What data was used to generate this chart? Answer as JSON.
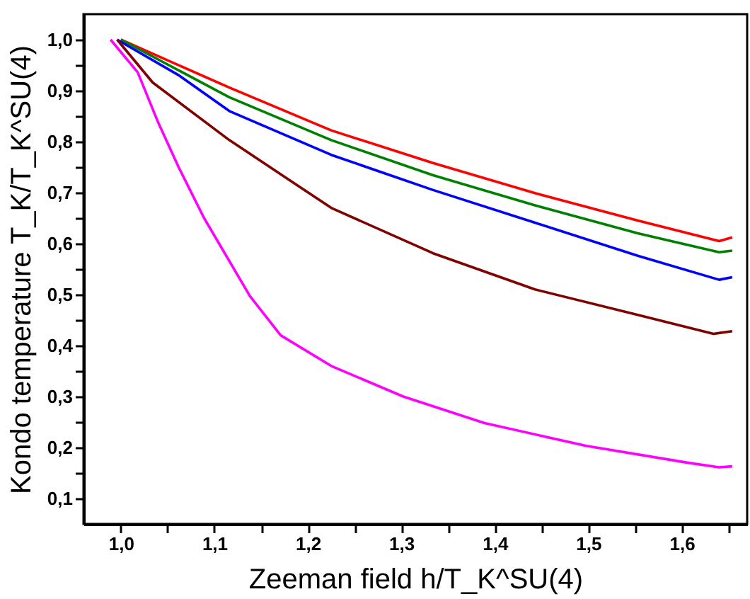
{
  "chart_data": {
    "type": "line",
    "xlabel": "Zeeman field h/T_K^SU(4)",
    "ylabel": "Kondo temperature T_K/T_K^SU(4)",
    "xlim": [
      0.96,
      1.67
    ],
    "ylim": [
      0.05,
      1.05
    ],
    "xticks": [
      {
        "value": 1.0,
        "label": "1,0"
      },
      {
        "value": 1.05,
        "label": null
      },
      {
        "value": 1.1,
        "label": "1,1"
      },
      {
        "value": 1.15,
        "label": null
      },
      {
        "value": 1.2,
        "label": "1,2"
      },
      {
        "value": 1.25,
        "label": null
      },
      {
        "value": 1.3,
        "label": "1,3"
      },
      {
        "value": 1.35,
        "label": null
      },
      {
        "value": 1.4,
        "label": "1,4"
      },
      {
        "value": 1.45,
        "label": null
      },
      {
        "value": 1.5,
        "label": "1,5"
      },
      {
        "value": 1.55,
        "label": null
      },
      {
        "value": 1.6,
        "label": "1,6"
      },
      {
        "value": 1.65,
        "label": null
      }
    ],
    "yticks": [
      {
        "value": 0.1,
        "label": "0,1"
      },
      {
        "value": 0.15,
        "label": null
      },
      {
        "value": 0.2,
        "label": "0,2"
      },
      {
        "value": 0.25,
        "label": null
      },
      {
        "value": 0.3,
        "label": "0,3"
      },
      {
        "value": 0.35,
        "label": null
      },
      {
        "value": 0.4,
        "label": "0,4"
      },
      {
        "value": 0.45,
        "label": null
      },
      {
        "value": 0.5,
        "label": "0,5"
      },
      {
        "value": 0.55,
        "label": null
      },
      {
        "value": 0.6,
        "label": "0,6"
      },
      {
        "value": 0.65,
        "label": null
      },
      {
        "value": 0.7,
        "label": "0,7"
      },
      {
        "value": 0.75,
        "label": null
      },
      {
        "value": 0.8,
        "label": "0,8"
      },
      {
        "value": 0.85,
        "label": null
      },
      {
        "value": 0.9,
        "label": "0,9"
      },
      {
        "value": 0.95,
        "label": null
      },
      {
        "value": 1.0,
        "label": "1,0"
      }
    ],
    "grid": false,
    "legend": false,
    "marker": "none",
    "line_style": "solid",
    "series": [
      {
        "color": "#ff0000",
        "x": [
          1.0,
          1.116,
          1.225,
          1.334,
          1.443,
          1.553,
          1.64,
          1.654
        ],
        "values": [
          1.0,
          0.906,
          0.822,
          0.758,
          0.699,
          0.645,
          0.605,
          0.612
        ]
      },
      {
        "color": "#008000",
        "x": [
          1.0,
          1.116,
          1.225,
          1.334,
          1.443,
          1.553,
          1.64,
          1.654
        ],
        "values": [
          1.0,
          0.887,
          0.803,
          0.734,
          0.675,
          0.62,
          0.583,
          0.586
        ]
      },
      {
        "color": "#0000ff",
        "x": [
          0.996,
          1.062,
          1.116,
          1.225,
          1.334,
          1.443,
          1.553,
          1.64,
          1.654
        ],
        "values": [
          1.0,
          0.93,
          0.86,
          0.774,
          0.705,
          0.641,
          0.576,
          0.529,
          0.534
        ]
      },
      {
        "color": "#800000",
        "x": [
          0.996,
          1.034,
          1.116,
          1.225,
          1.334,
          1.443,
          1.553,
          1.634,
          1.654
        ],
        "values": [
          1.0,
          0.916,
          0.803,
          0.67,
          0.581,
          0.51,
          0.46,
          0.423,
          0.428
        ]
      },
      {
        "color": "#ff00ff",
        "x": [
          0.989,
          1.018,
          1.04,
          1.062,
          1.089,
          1.138,
          1.171,
          1.225,
          1.302,
          1.389,
          1.498,
          1.607,
          1.64,
          1.654
        ],
        "values": [
          1.0,
          0.936,
          0.837,
          0.749,
          0.65,
          0.497,
          0.42,
          0.36,
          0.3,
          0.248,
          0.203,
          0.17,
          0.161,
          0.163
        ]
      }
    ]
  }
}
